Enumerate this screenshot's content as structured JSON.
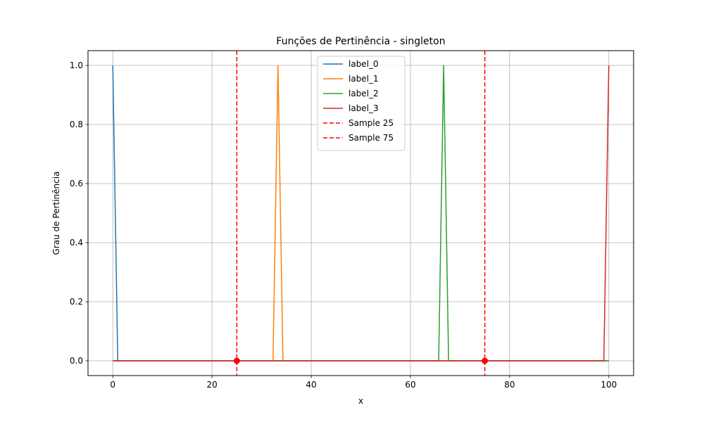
{
  "chart_data": {
    "type": "line",
    "title": "Funções de Pertinência - singleton",
    "xlabel": "x",
    "ylabel": "Grau de Pertinência",
    "xlim": [
      -5,
      105
    ],
    "ylim": [
      -0.05,
      1.05
    ],
    "xticks": [
      "0",
      "20",
      "40",
      "60",
      "80",
      "100"
    ],
    "yticks": [
      "0.0",
      "0.2",
      "0.4",
      "0.6",
      "0.8",
      "1.0"
    ],
    "grid": true,
    "legend_position": "top-center",
    "series": [
      {
        "name": "label_0",
        "color": "#1f77b4",
        "x": [
          0,
          1,
          100
        ],
        "y": [
          1,
          0,
          0
        ]
      },
      {
        "name": "label_1",
        "color": "#ff7f0e",
        "x": [
          0,
          32.3,
          33.3,
          34.3,
          100
        ],
        "y": [
          0,
          0,
          1,
          0,
          0
        ]
      },
      {
        "name": "label_2",
        "color": "#2ca02c",
        "x": [
          0,
          65.7,
          66.7,
          67.7,
          100
        ],
        "y": [
          0,
          0,
          1,
          0,
          0
        ]
      },
      {
        "name": "label_3",
        "color": "#d62728",
        "x": [
          0,
          99,
          100
        ],
        "y": [
          0,
          0,
          1
        ]
      }
    ],
    "samples": [
      {
        "name": "Sample 25",
        "x": 25,
        "color": "#ff0000"
      },
      {
        "name": "Sample 75",
        "x": 75,
        "color": "#ff0000"
      }
    ]
  }
}
